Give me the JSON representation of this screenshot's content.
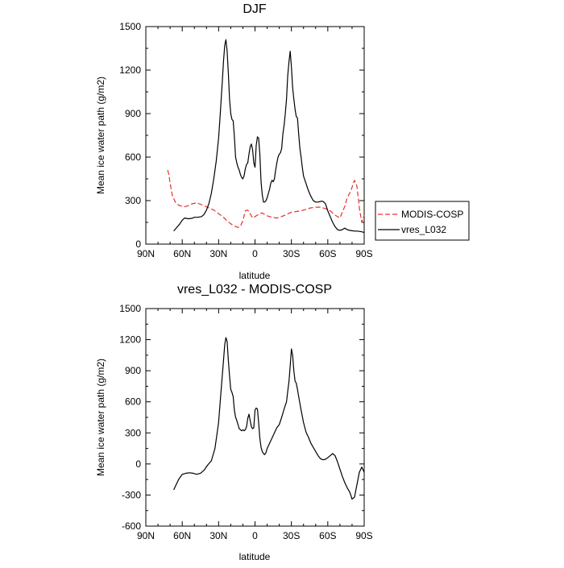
{
  "chart_data": [
    {
      "type": "line",
      "title": "DJF",
      "xlabel": "latitude",
      "ylabel": "Mean ice water path (g/m2)",
      "xlim": [
        -90,
        90
      ],
      "ylim": [
        0,
        1500
      ],
      "x_ticks": [
        -90,
        -60,
        -30,
        0,
        30,
        60,
        90
      ],
      "x_tick_labels": [
        "90N",
        "60N",
        "30N",
        "0",
        "30S",
        "60S",
        "90S"
      ],
      "y_ticks": [
        0,
        300,
        600,
        900,
        1200,
        1500
      ],
      "y_tick_labels": [
        "0",
        "300",
        "600",
        "900",
        "1200",
        "1500"
      ],
      "legend": {
        "position": "right",
        "entries": [
          "MODIS-COSP",
          "vres_L032"
        ]
      },
      "series": [
        {
          "name": "MODIS-COSP",
          "color": "#e8302a",
          "dash": "dashed",
          "x": [
            -72,
            -71,
            -70,
            -68,
            -65,
            -62,
            -58,
            -55,
            -52,
            -48,
            -45,
            -42,
            -38,
            -34,
            -30,
            -26,
            -23,
            -20,
            -17,
            -14,
            -12,
            -10,
            -8,
            -6,
            -4,
            -2,
            0,
            2,
            4,
            6,
            8,
            10,
            14,
            18,
            22,
            26,
            30,
            34,
            38,
            42,
            46,
            50,
            54,
            58,
            62,
            66,
            70,
            74,
            76,
            78,
            80,
            81,
            82,
            84,
            86,
            88,
            90
          ],
          "y": [
            510,
            480,
            420,
            330,
            280,
            265,
            258,
            265,
            278,
            285,
            275,
            265,
            250,
            235,
            210,
            185,
            160,
            140,
            125,
            115,
            125,
            160,
            230,
            235,
            210,
            180,
            190,
            200,
            210,
            215,
            205,
            195,
            185,
            180,
            190,
            205,
            220,
            225,
            230,
            240,
            250,
            255,
            255,
            245,
            230,
            200,
            180,
            260,
            320,
            350,
            390,
            420,
            440,
            400,
            250,
            150,
            200
          ]
        },
        {
          "name": "vres_L032",
          "color": "#000000",
          "dash": "solid",
          "x": [
            -67,
            -65,
            -62,
            -60,
            -58,
            -55,
            -52,
            -50,
            -47,
            -44,
            -42,
            -40,
            -38,
            -36,
            -34,
            -32,
            -30,
            -29,
            -28,
            -27,
            -26,
            -25,
            -24,
            -23,
            -22,
            -21,
            -20,
            -19,
            -18,
            -17,
            -16,
            -15,
            -14,
            -13,
            -12,
            -11,
            -10,
            -9,
            -8,
            -7,
            -6,
            -5,
            -4,
            -3,
            -2,
            -1,
            0,
            1,
            2,
            3,
            4,
            5,
            6,
            7,
            8,
            9,
            10,
            11,
            12,
            13,
            14,
            15,
            16,
            17,
            18,
            19,
            20,
            21,
            22,
            23,
            24,
            25,
            26,
            27,
            28,
            29,
            30,
            31,
            32,
            33,
            34,
            35,
            36,
            37,
            38,
            39,
            40,
            42,
            44,
            46,
            48,
            50,
            52,
            54,
            56,
            58,
            60,
            62,
            64,
            66,
            68,
            70,
            72,
            74,
            76,
            78,
            80,
            82,
            84,
            86,
            88,
            90
          ],
          "y": [
            90,
            110,
            140,
            165,
            180,
            175,
            178,
            185,
            185,
            190,
            205,
            235,
            280,
            350,
            450,
            570,
            730,
            850,
            980,
            1120,
            1260,
            1370,
            1410,
            1330,
            1180,
            1000,
            900,
            860,
            850,
            740,
            600,
            560,
            530,
            510,
            480,
            460,
            450,
            470,
            520,
            550,
            560,
            620,
            670,
            690,
            650,
            560,
            530,
            680,
            740,
            730,
            620,
            430,
            340,
            290,
            290,
            300,
            320,
            350,
            380,
            420,
            440,
            430,
            450,
            510,
            560,
            600,
            620,
            630,
            660,
            760,
            820,
            900,
            1000,
            1160,
            1260,
            1330,
            1220,
            1080,
            1000,
            930,
            880,
            870,
            760,
            660,
            600,
            530,
            470,
            420,
            370,
            330,
            300,
            290,
            290,
            295,
            295,
            280,
            230,
            190,
            150,
            120,
            100,
            95,
            100,
            110,
            100,
            95,
            92,
            90,
            90,
            88,
            85,
            80
          ]
        }
      ]
    },
    {
      "type": "line",
      "title": "vres_L032 - MODIS-COSP",
      "xlabel": "latitude",
      "ylabel": "Mean ice water path (g/m2)",
      "xlim": [
        -90,
        90
      ],
      "ylim": [
        -600,
        1500
      ],
      "x_ticks": [
        -90,
        -60,
        -30,
        0,
        30,
        60,
        90
      ],
      "x_tick_labels": [
        "90N",
        "60N",
        "30N",
        "0",
        "30S",
        "60S",
        "90S"
      ],
      "y_ticks": [
        -600,
        -300,
        0,
        300,
        600,
        900,
        1200,
        1500
      ],
      "y_tick_labels": [
        "-600",
        "-300",
        "0",
        "300",
        "600",
        "900",
        "1200",
        "1500"
      ],
      "series": [
        {
          "name": "vres_L032 - MODIS-COSP",
          "color": "#000000",
          "dash": "solid",
          "x": [
            -67,
            -65,
            -63,
            -60,
            -57,
            -54,
            -51,
            -48,
            -45,
            -42,
            -39,
            -36,
            -33,
            -30,
            -28,
            -26,
            -25,
            -24,
            -23,
            -22,
            -21,
            -20,
            -19,
            -18,
            -17,
            -16,
            -15,
            -14,
            -13,
            -12,
            -11,
            -10,
            -9,
            -8,
            -7,
            -6,
            -5,
            -4,
            -3,
            -2,
            -1,
            0,
            1,
            2,
            3,
            4,
            5,
            6,
            7,
            8,
            9,
            10,
            12,
            14,
            16,
            18,
            20,
            22,
            24,
            26,
            27,
            28,
            29,
            30,
            31,
            32,
            33,
            34,
            35,
            36,
            38,
            40,
            42,
            44,
            46,
            48,
            50,
            52,
            54,
            56,
            58,
            60,
            62,
            64,
            66,
            68,
            70,
            72,
            74,
            76,
            78,
            79,
            80,
            82,
            84,
            86,
            88,
            90
          ],
          "y": [
            -250,
            -200,
            -150,
            -100,
            -90,
            -85,
            -90,
            -100,
            -90,
            -60,
            -10,
            30,
            150,
            400,
            700,
            1000,
            1150,
            1220,
            1180,
            1000,
            850,
            720,
            690,
            650,
            520,
            450,
            420,
            380,
            340,
            330,
            320,
            330,
            320,
            330,
            360,
            440,
            480,
            420,
            360,
            340,
            350,
            520,
            540,
            530,
            400,
            250,
            160,
            120,
            100,
            90,
            110,
            150,
            200,
            250,
            300,
            350,
            380,
            450,
            530,
            600,
            700,
            800,
            950,
            1110,
            1050,
            900,
            800,
            780,
            720,
            650,
            520,
            400,
            310,
            260,
            200,
            160,
            120,
            80,
            50,
            40,
            45,
            60,
            80,
            100,
            80,
            20,
            -50,
            -120,
            -180,
            -230,
            -270,
            -300,
            -340,
            -320,
            -200,
            -80,
            -30,
            -80
          ]
        }
      ]
    }
  ]
}
